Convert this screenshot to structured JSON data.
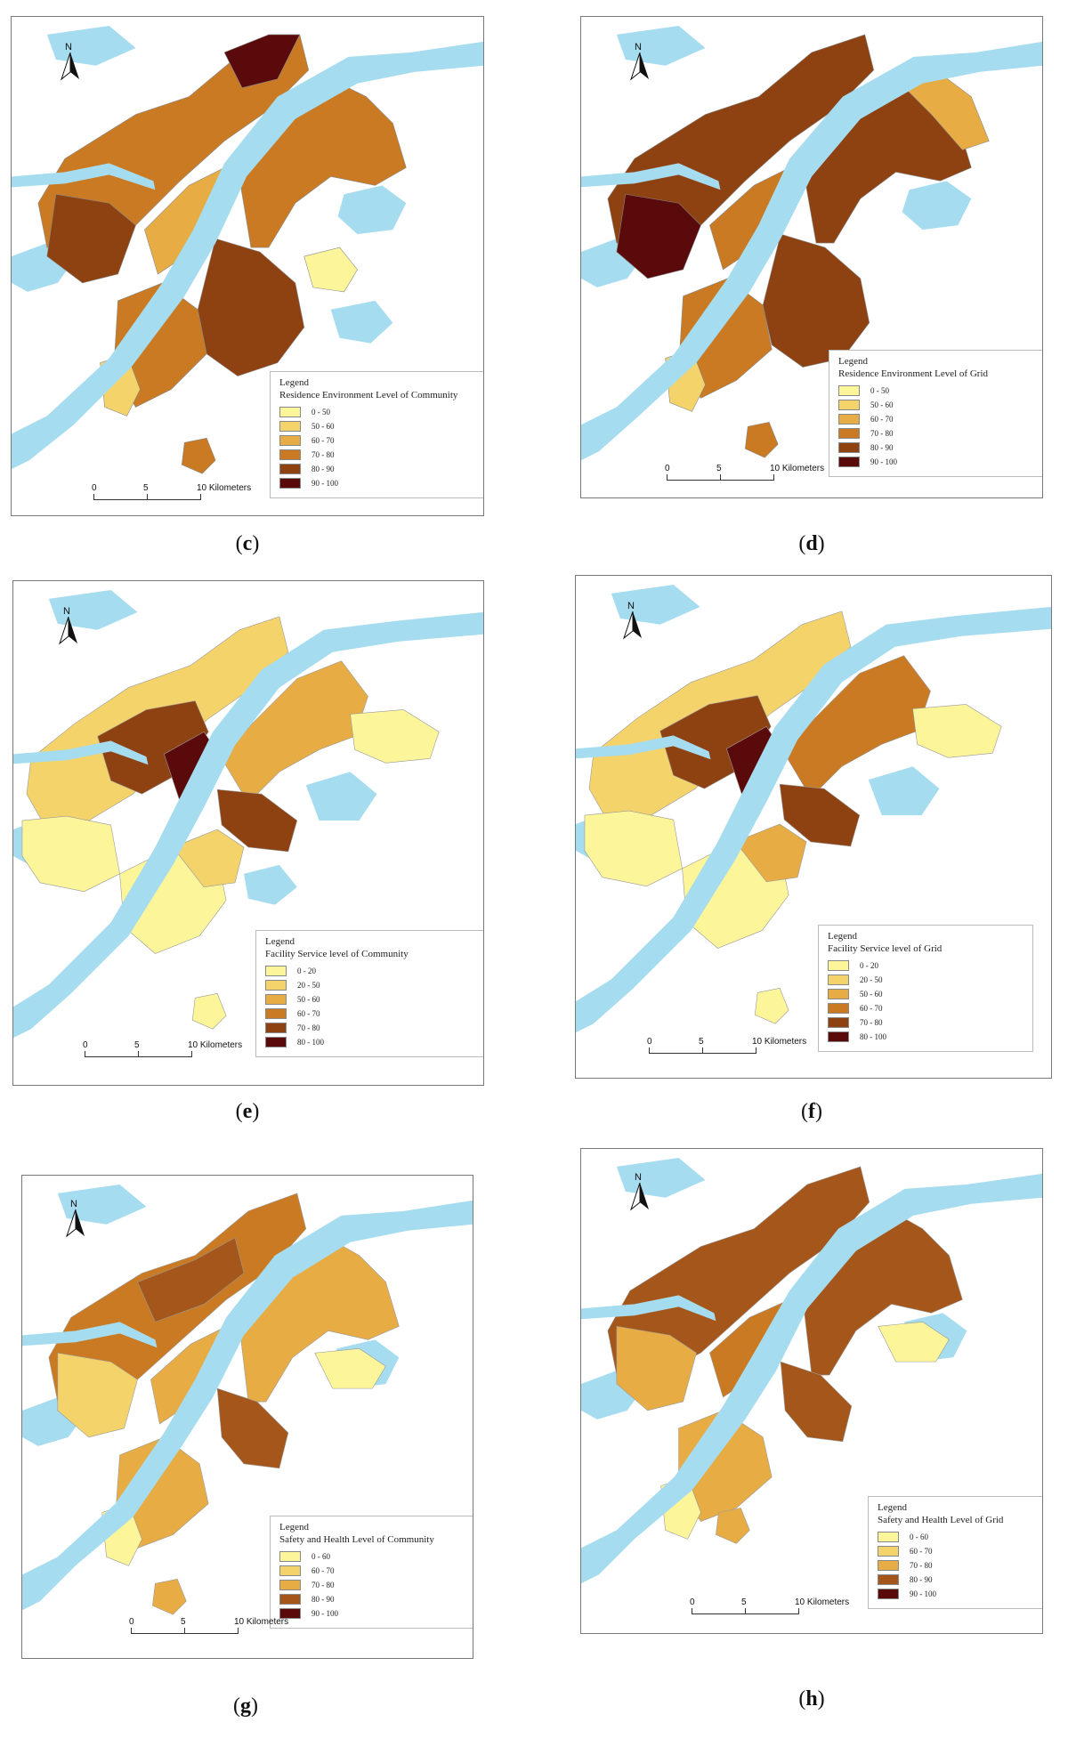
{
  "colors": {
    "water": "#a6dcef",
    "road": "#7aaec8",
    "border": "#888888"
  },
  "panels": [
    {
      "id": "c",
      "caption": "c",
      "legend_title": "Legend",
      "legend_subtitle": "Residence Environment Level of Community",
      "classes": [
        {
          "label": "0 - 50",
          "color": "#fdf59a"
        },
        {
          "label": "50 - 60",
          "color": "#f5d36b"
        },
        {
          "label": "60 - 70",
          "color": "#e8ac44"
        },
        {
          "label": "70 - 80",
          "color": "#c97a22"
        },
        {
          "label": "80 - 90",
          "color": "#8e4212"
        },
        {
          "label": "90 - 100",
          "color": "#5a0a0a"
        }
      ]
    },
    {
      "id": "d",
      "caption": "d",
      "legend_title": "Legend",
      "legend_subtitle": "Residence Environment Level of Grid",
      "classes": [
        {
          "label": "0 - 50",
          "color": "#fdf59a"
        },
        {
          "label": "50 - 60",
          "color": "#f5d36b"
        },
        {
          "label": "60 - 70",
          "color": "#e8ac44"
        },
        {
          "label": "70 - 80",
          "color": "#c97a22"
        },
        {
          "label": "80 - 90",
          "color": "#8e4212"
        },
        {
          "label": "90 - 100",
          "color": "#5a0a0a"
        }
      ]
    },
    {
      "id": "e",
      "caption": "e",
      "legend_title": "Legend",
      "legend_subtitle": "Facility Service level of Community",
      "classes": [
        {
          "label": "0 - 20",
          "color": "#fdf59a"
        },
        {
          "label": "20 - 50",
          "color": "#f5d36b"
        },
        {
          "label": "50 - 60",
          "color": "#e8ac44"
        },
        {
          "label": "60 - 70",
          "color": "#c97a22"
        },
        {
          "label": "70 - 80",
          "color": "#8e4212"
        },
        {
          "label": "80 - 100",
          "color": "#5a0a0a"
        }
      ]
    },
    {
      "id": "f",
      "caption": "f",
      "legend_title": "Legend",
      "legend_subtitle": "Facility Service level of Grid",
      "classes": [
        {
          "label": "0 - 20",
          "color": "#fdf59a"
        },
        {
          "label": "20 - 50",
          "color": "#f5d36b"
        },
        {
          "label": "50 - 60",
          "color": "#e8ac44"
        },
        {
          "label": "60 - 70",
          "color": "#c97a22"
        },
        {
          "label": "70 - 80",
          "color": "#8e4212"
        },
        {
          "label": "80 - 100",
          "color": "#5a0a0a"
        }
      ]
    },
    {
      "id": "g",
      "caption": "g",
      "legend_title": "Legend",
      "legend_subtitle": "Safety and Health Level of Community",
      "classes": [
        {
          "label": "0 - 60",
          "color": "#fdf59a"
        },
        {
          "label": "60 - 70",
          "color": "#f5d36b"
        },
        {
          "label": "70 - 80",
          "color": "#e8ac44"
        },
        {
          "label": "80 - 90",
          "color": "#a5561a"
        },
        {
          "label": "90 - 100",
          "color": "#5a0a0a"
        }
      ]
    },
    {
      "id": "h",
      "caption": "h",
      "legend_title": "Legend",
      "legend_subtitle": "Safety and Health Level of Grid",
      "classes": [
        {
          "label": "0 - 60",
          "color": "#fdf59a"
        },
        {
          "label": "60 - 70",
          "color": "#f5d36b"
        },
        {
          "label": "70 - 80",
          "color": "#e8ac44"
        },
        {
          "label": "80 - 90",
          "color": "#a5561a"
        },
        {
          "label": "90 - 100",
          "color": "#5a0a0a"
        }
      ]
    }
  ],
  "scalebar": {
    "t0": "0",
    "t5": "5",
    "t10": "10 Kilometers"
  },
  "north_label": "N",
  "icons": {
    "north_arrow": "north-arrow-icon"
  }
}
